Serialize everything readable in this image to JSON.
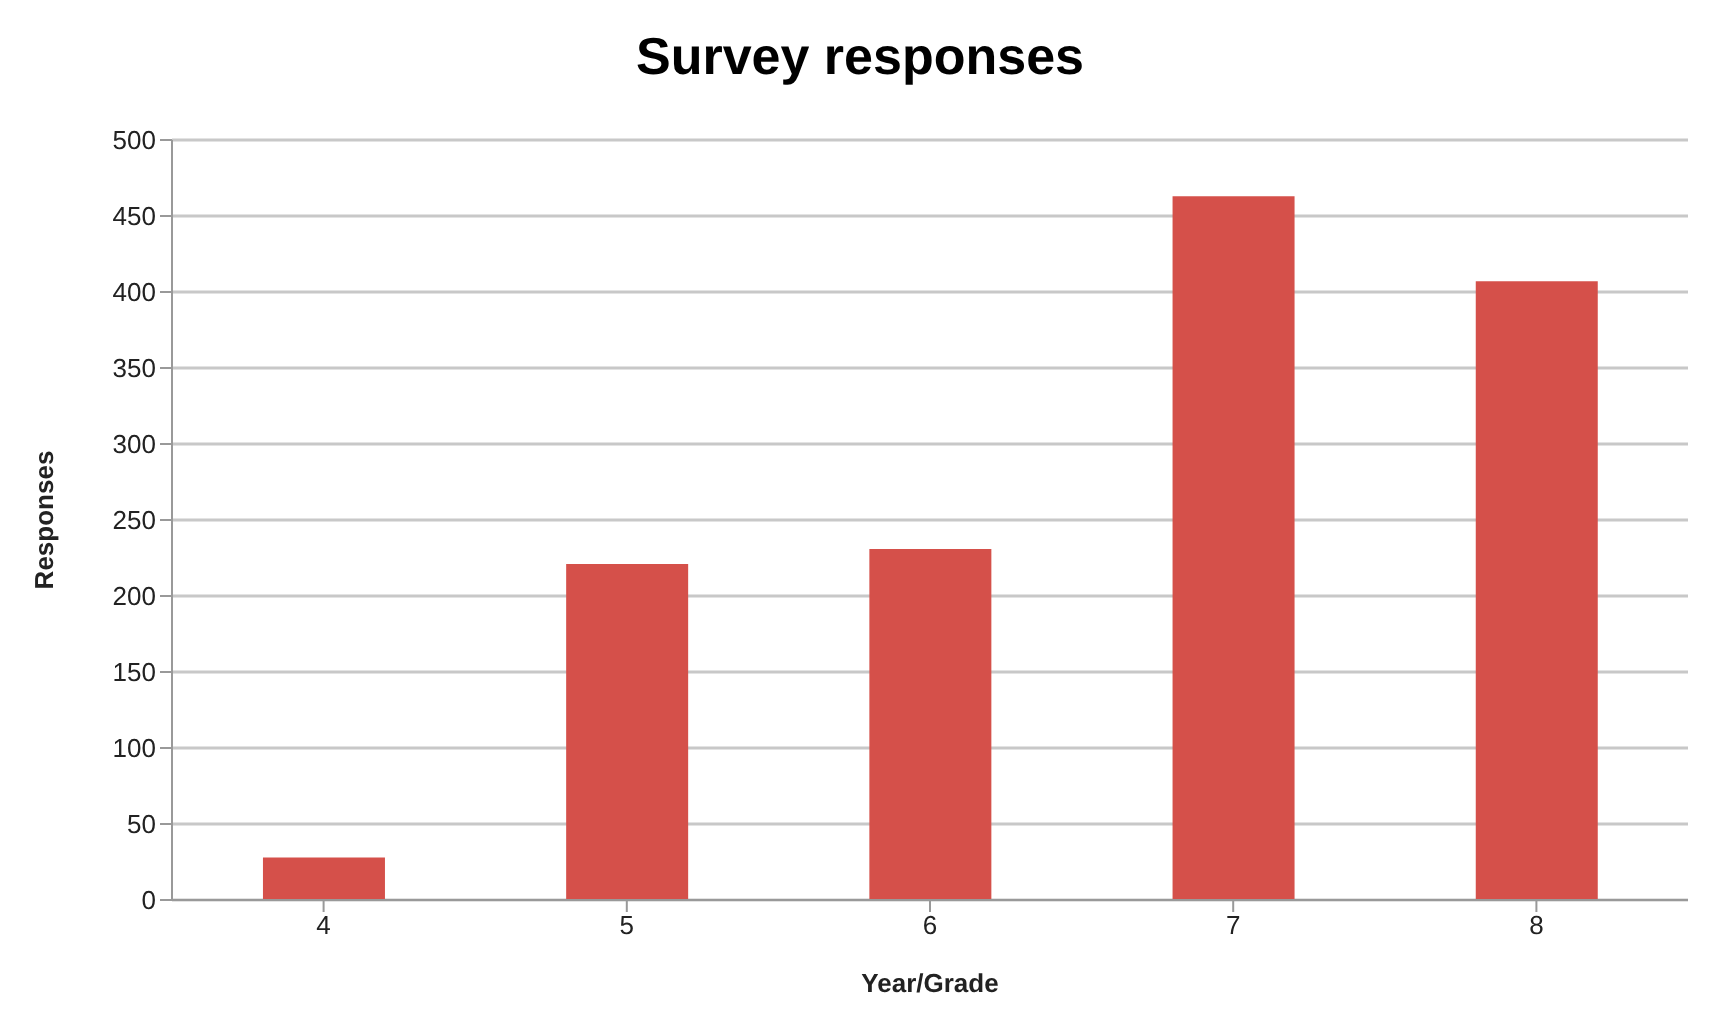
{
  "chart_data": {
    "type": "bar",
    "title": "Survey responses",
    "xlabel": "Year/Grade",
    "ylabel": "Responses",
    "categories": [
      "4",
      "5",
      "6",
      "7",
      "8"
    ],
    "values": [
      28,
      221,
      231,
      463,
      407
    ],
    "color": "#d5504a",
    "ylim": [
      0,
      500
    ],
    "yticks": [
      0,
      50,
      100,
      150,
      200,
      250,
      300,
      350,
      400,
      450,
      500
    ],
    "grid": "y",
    "legend": false
  }
}
